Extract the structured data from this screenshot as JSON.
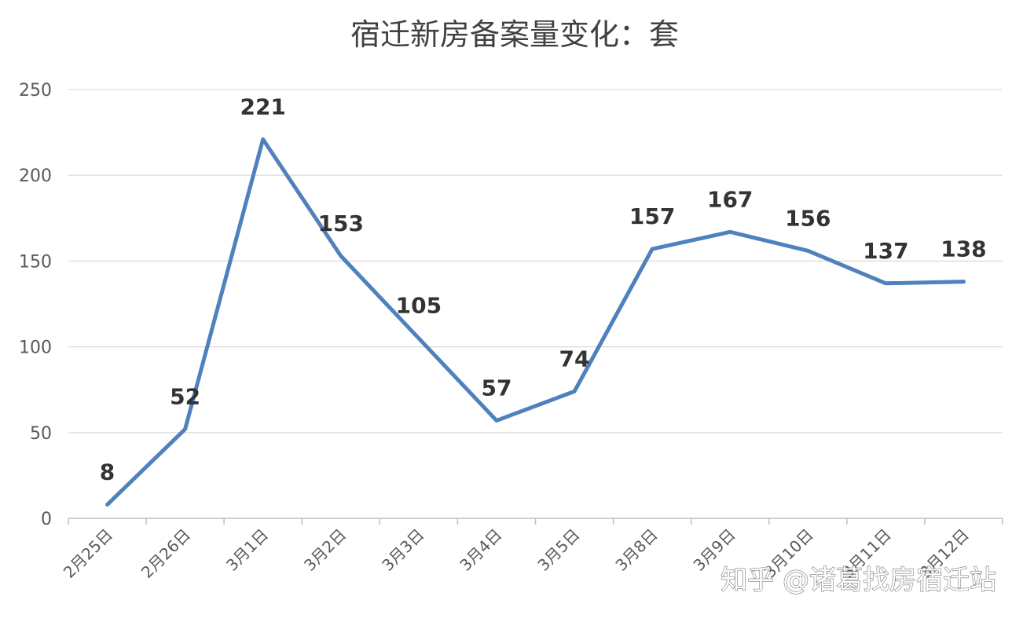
{
  "chart_data": {
    "type": "line",
    "title": "宿迁新房备案量变化：套",
    "categories": [
      "2月25日",
      "2月26日",
      "3月1日",
      "3月2日",
      "3月3日",
      "3月4日",
      "3月5日",
      "3月8日",
      "3月9日",
      "3月10日",
      "3月11日",
      "3月12日"
    ],
    "series": [
      {
        "values": [
          8,
          52,
          221,
          153,
          105,
          57,
          74,
          157,
          167,
          156,
          137,
          138
        ],
        "color": "#4f81bd"
      }
    ],
    "yticks": [
      0,
      50,
      100,
      150,
      200,
      250
    ],
    "ylim": [
      0,
      250
    ],
    "grid": true,
    "data_labels": true,
    "gridline_color": "#d9d9d9",
    "axis_color": "#bfbfbf"
  },
  "watermark": {
    "text": "知乎 @诸葛找房宿迁站"
  }
}
